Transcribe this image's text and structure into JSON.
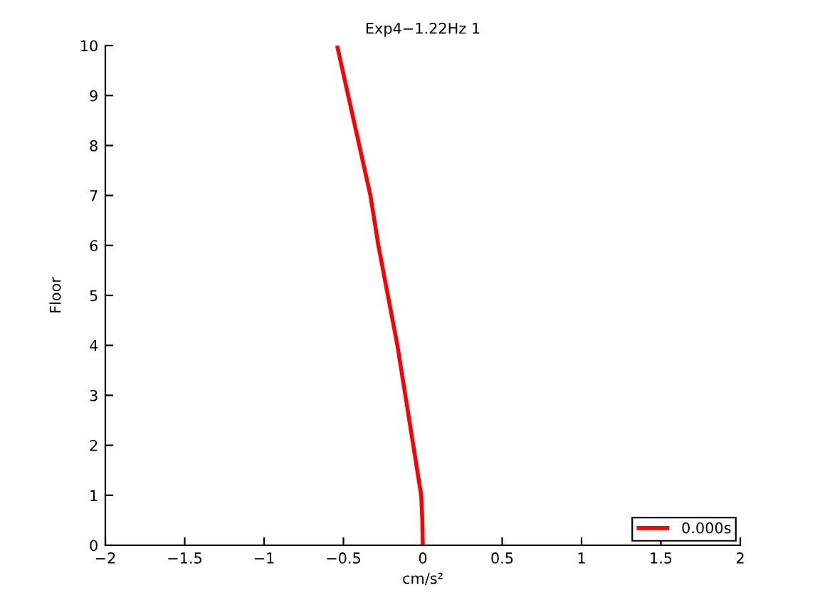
{
  "chart_data": {
    "type": "line",
    "title": "Exp4−1.22Hz 1",
    "xlabel": "cm/s²",
    "ylabel": "Floor",
    "series": [
      {
        "name": "0.000s",
        "color": "#ff0000",
        "x": [
          0,
          -0.003,
          -0.01,
          -0.035,
          -0.06,
          -0.11,
          -0.16,
          -0.22,
          -0.28,
          -0.33,
          -0.4,
          -0.47,
          -0.54
        ],
        "values": [
          0,
          0.5,
          1,
          1.5,
          2,
          3,
          4,
          5,
          6,
          7,
          8,
          9,
          10
        ]
      }
    ],
    "xlim": [
      -2,
      2
    ],
    "xticks": [
      -2,
      -1.5,
      -1,
      -0.5,
      0,
      0.5,
      1,
      1.5,
      2
    ],
    "ylim": [
      0,
      10
    ],
    "yticks": [
      0,
      1,
      2,
      3,
      4,
      5,
      6,
      7,
      8,
      9,
      10
    ],
    "grid": false,
    "legend": "bottom right",
    "marker": "none",
    "line_style": "solid"
  }
}
